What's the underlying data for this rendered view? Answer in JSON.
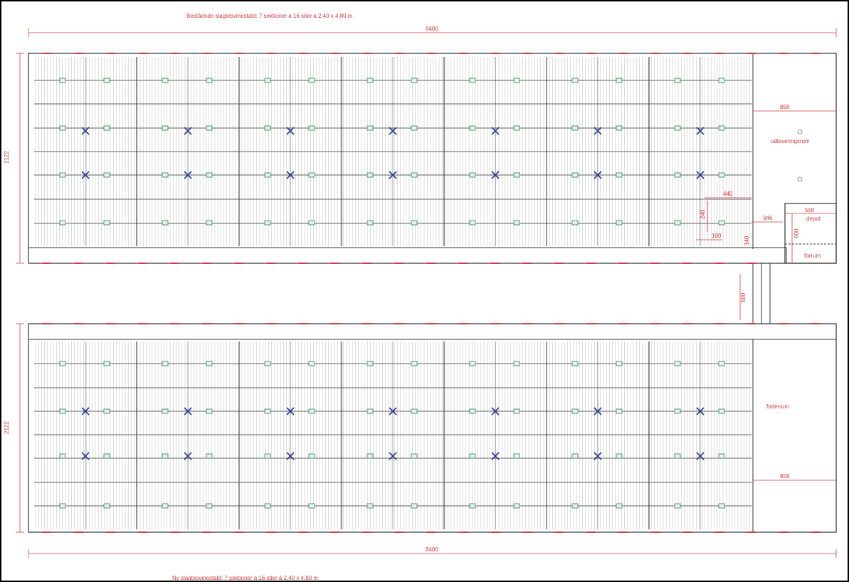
{
  "titles": {
    "top": "Bestående slagtesvinestald: 7 sektioner á 16 stier á 2,40 x 4,80 m",
    "bottom": "Ny slagtesvinestald: 7 sektioner á 16 stier á 2,40 x 4,80 m"
  },
  "dimensions": {
    "top_length": "8400",
    "bottom_length": "8400",
    "top_width": "2122",
    "bottom_width": "2122",
    "top_room_width": "858",
    "bottom_room_width": "858",
    "small_a": "440",
    "small_b": "240",
    "small_c": "100",
    "small_d": "140",
    "depot_width": "500",
    "depot_offset": "346",
    "depot_height": "600",
    "corridor_length": "600"
  },
  "rooms": {
    "delivery": "udleveringsrum",
    "depot": "depot",
    "anteroom": "forrum",
    "feed": "foderrum"
  },
  "colors": {
    "dimension": "#d63b3b",
    "line": "#333333",
    "hatch": "#9a9a9a",
    "marker": "#4a8c6a",
    "cross": "#2a3a8c"
  }
}
